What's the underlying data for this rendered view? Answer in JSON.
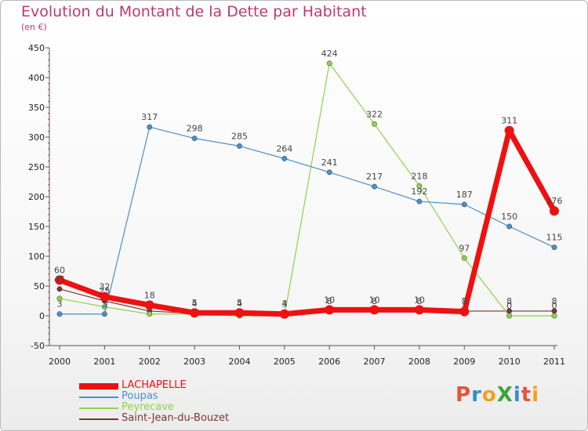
{
  "title": "Evolution du Montant de la Dette par Habitant",
  "subtitle": "(en €)",
  "logo": {
    "text": "ProXiti",
    "letter_colors": [
      "#e8533a",
      "#2f8fd0",
      "#f0a21c",
      "#3aa63a",
      "#2f8fd0",
      "#e8533a",
      "#f0a21c"
    ]
  },
  "chart_data": {
    "type": "line",
    "title": "Evolution du Montant de la Dette par Habitant",
    "subtitle": "(en €)",
    "xlabel": "",
    "ylabel": "",
    "x": [
      "2000",
      "2001",
      "2002",
      "2003",
      "2004",
      "2005",
      "2006",
      "2007",
      "2008",
      "2009",
      "2010",
      "2011"
    ],
    "y_ticks": [
      -50,
      0,
      50,
      100,
      150,
      200,
      250,
      300,
      350,
      400,
      450
    ],
    "ylim": [
      -50,
      450
    ],
    "grid": false,
    "legend_position": "bottom-left",
    "series": [
      {
        "name": "LACHAPELLE",
        "color": "#ee1111",
        "values": [
          60,
          32,
          18,
          5,
          5,
          3,
          10,
          10,
          10,
          7,
          311,
          176
        ],
        "labels": [
          "60",
          "32",
          "18",
          "5",
          "5",
          "3",
          "10",
          "10",
          "10",
          "7",
          "311",
          "176"
        ]
      },
      {
        "name": "Poupas",
        "color": "#4a8fc9",
        "values": [
          3,
          3,
          317,
          298,
          285,
          264,
          241,
          217,
          192,
          187,
          150,
          115
        ],
        "labels": [
          "3",
          "3",
          "317",
          "298",
          "285",
          "264",
          "241",
          "217",
          "192",
          "187",
          "150",
          "115"
        ]
      },
      {
        "name": "Peyrecave",
        "color": "#8fd24a",
        "values": [
          29,
          15,
          3,
          3,
          0,
          0,
          424,
          322,
          218,
          97,
          0,
          0
        ],
        "labels": [
          "",
          "",
          "",
          "",
          "",
          "",
          "424",
          "322",
          "218",
          "97",
          "0",
          "0"
        ]
      },
      {
        "name": "Saint-Jean-du-Bouzet",
        "color": "#7a3535",
        "values": [
          45,
          25,
          8,
          4,
          4,
          4,
          8,
          8,
          8,
          8,
          8,
          8
        ],
        "labels": [
          "45",
          "25",
          "",
          "4",
          "4",
          "4",
          "8",
          "8",
          "8",
          "8",
          "8",
          "8"
        ]
      }
    ]
  }
}
